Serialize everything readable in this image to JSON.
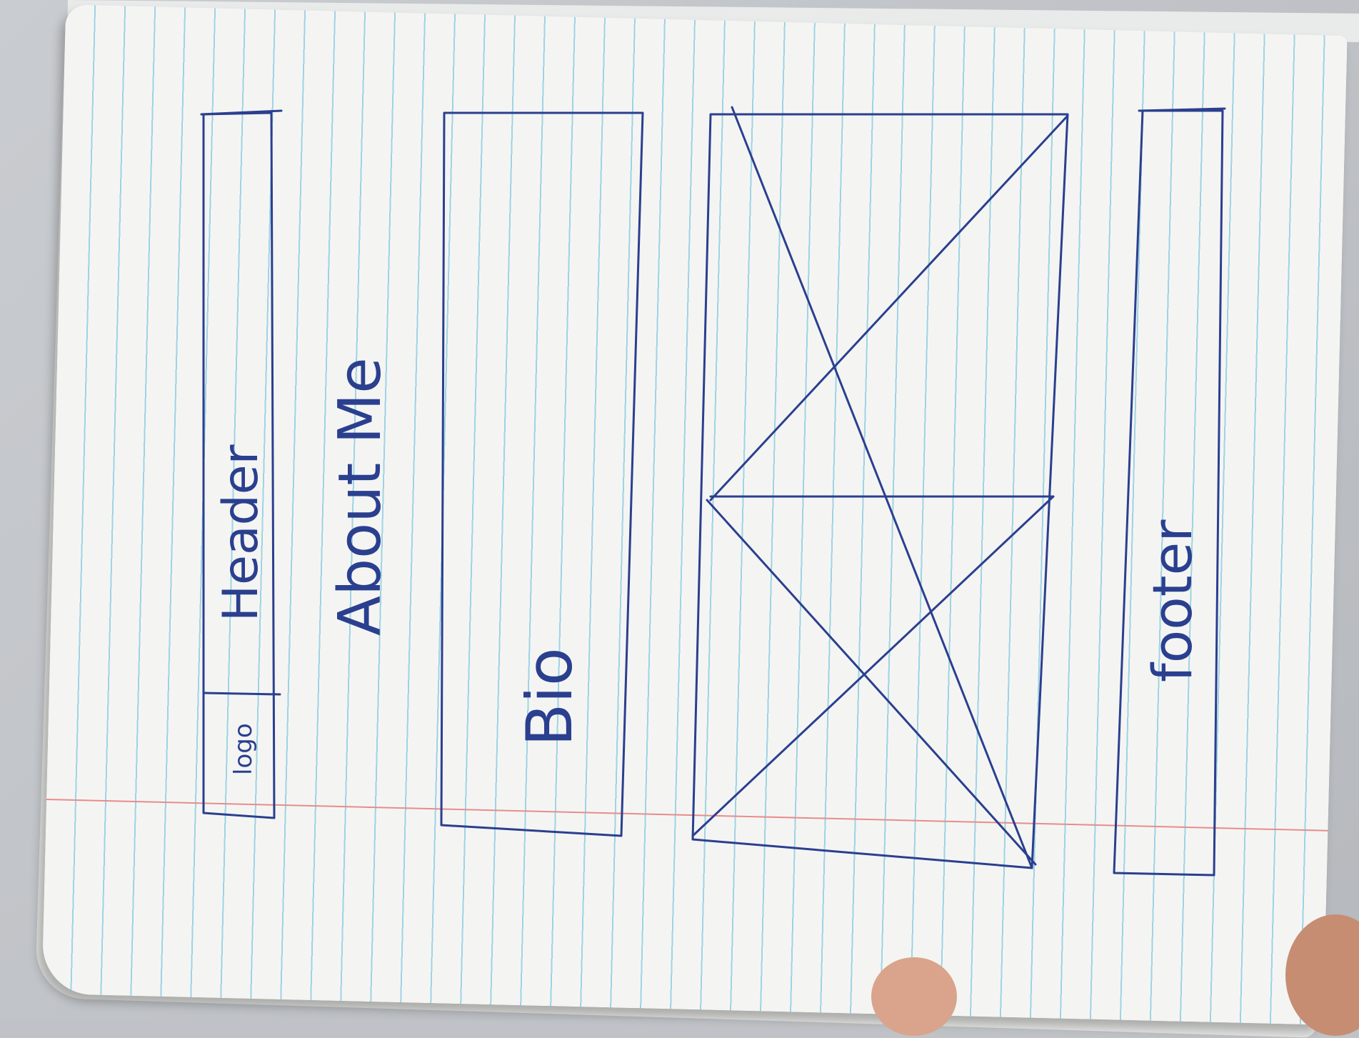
{
  "sketch": {
    "logo_label": "logo",
    "header_label": "Header",
    "title": "About Me",
    "bio_label": "Bio",
    "footer_label": "footer"
  },
  "colors": {
    "ink": "#2b3f8f",
    "paper": "#f4f5f3",
    "rule_line": "#9fd3e4",
    "margin_line": "#e88c8c"
  }
}
